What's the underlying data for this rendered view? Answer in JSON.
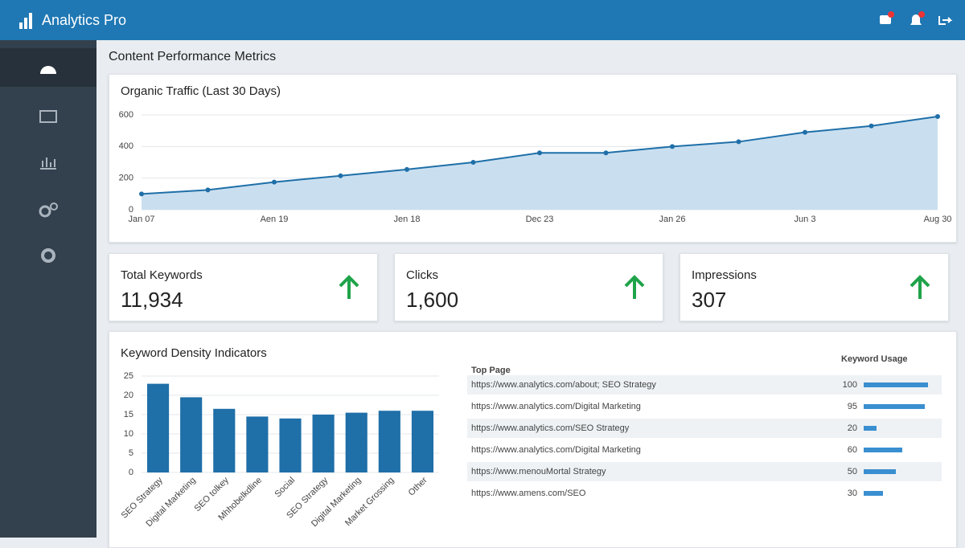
{
  "header": {
    "title": "Analytics Pro"
  },
  "page_title": "Content Performance Metrics",
  "chart_data": [
    {
      "type": "line",
      "title": "Organic Traffic (Last 30 Days)",
      "categories": [
        "Jan 07",
        null,
        "Aen 19",
        null,
        "Jen 18",
        null,
        "Dec 23",
        null,
        "Jan 26",
        null,
        "Jun 3",
        null,
        "Aug 30"
      ],
      "values": [
        100,
        125,
        175,
        215,
        255,
        300,
        360,
        360,
        400,
        430,
        490,
        530,
        590
      ],
      "color": "#1f6fa8",
      "ylim": [
        0,
        600
      ],
      "yticks": [
        0,
        200,
        400,
        600
      ],
      "grid": true
    },
    {
      "type": "bar",
      "title": "Keyword Density Indicators",
      "categories": [
        "SEO Strategy",
        "Digital Marketing",
        "SEO tolkey",
        "Mhhobelkdline",
        "Social",
        "SEO Strategy",
        "Digital Marketing",
        "Market Grossing",
        "Other"
      ],
      "values": [
        23,
        19.5,
        16.5,
        14.5,
        14,
        15,
        15.5,
        16,
        16
      ],
      "color": "#1f6fa8",
      "ylim": [
        0,
        25
      ],
      "yticks": [
        0,
        5,
        10,
        15,
        20,
        25
      ],
      "grid": true
    }
  ],
  "kpis": [
    {
      "label": "Total Keywords",
      "value": "11,934"
    },
    {
      "label": "Clicks",
      "value": "1,600"
    },
    {
      "label": "Impressions",
      "value": "307"
    }
  ],
  "table": {
    "headers": [
      "Top Page",
      "Keyword Usage"
    ],
    "rows": [
      [
        "https://www.analytics.com/about; SEO Strategy",
        100
      ],
      [
        "https://www.analytics.com/Digital Marketing",
        95
      ],
      [
        "https://www.analytics.com/SEO Strategy",
        20
      ],
      [
        "https://www.analytics.com/Digital Marketing",
        60
      ],
      [
        "https://www.menouMortal Strategy",
        50
      ],
      [
        "https://www.amens.com/SEO",
        30
      ]
    ]
  }
}
